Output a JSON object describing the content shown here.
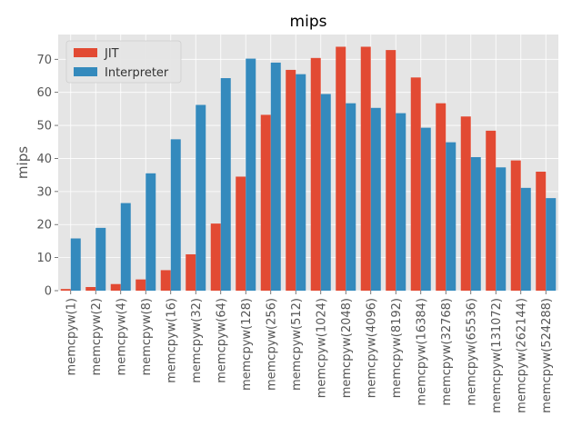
{
  "chart_data": {
    "type": "bar",
    "title": "mips",
    "xlabel": "",
    "ylabel": "mips",
    "ylim": [
      0,
      77.5
    ],
    "yticks": [
      0,
      10,
      20,
      30,
      40,
      50,
      60,
      70
    ],
    "grid": true,
    "legend_position": "upper-left",
    "categories": [
      "memcpyw(1)",
      "memcpyw(2)",
      "memcpyw(4)",
      "memcpyw(8)",
      "memcpyw(16)",
      "memcpyw(32)",
      "memcpyw(64)",
      "memcpyw(128)",
      "memcpyw(256)",
      "memcpyw(512)",
      "memcpyw(1024)",
      "memcpyw(2048)",
      "memcpyw(4096)",
      "memcpyw(8192)",
      "memcpyw(16384)",
      "memcpyw(32768)",
      "memcpyw(65536)",
      "memcpyw(131072)",
      "memcpyw(262144)",
      "memcpyw(524288)"
    ],
    "series": [
      {
        "name": "JIT",
        "color": "#E24A33",
        "values": [
          0.5,
          1.1,
          2.0,
          3.4,
          6.2,
          11.0,
          20.3,
          34.5,
          53.2,
          66.8,
          70.4,
          73.8,
          73.8,
          72.8,
          64.5,
          56.7,
          52.7,
          48.4,
          39.4,
          36.0
        ]
      },
      {
        "name": "Interpreter",
        "color": "#348ABD",
        "values": [
          15.8,
          19.0,
          26.5,
          35.5,
          45.8,
          56.2,
          64.3,
          70.2,
          69.0,
          65.5,
          59.5,
          56.7,
          55.3,
          53.7,
          49.3,
          44.9,
          40.4,
          37.3,
          31.1,
          28.0
        ]
      }
    ]
  },
  "colors": {
    "plot_background": "#E5E5E5",
    "grid": "#FFFFFF",
    "text": "#555555"
  }
}
